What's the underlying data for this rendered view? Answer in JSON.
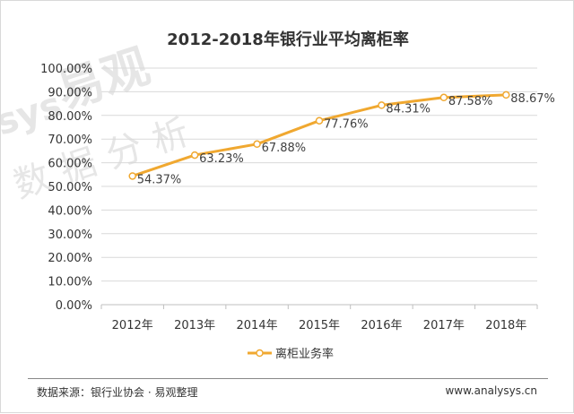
{
  "chart_data": {
    "type": "line",
    "title": "2012-2018年银行业平均离柜率",
    "categories": [
      "2012年",
      "2013年",
      "2014年",
      "2015年",
      "2016年",
      "2017年",
      "2018年"
    ],
    "series": [
      {
        "name": "离柜业务率",
        "values": [
          54.37,
          63.23,
          67.88,
          77.76,
          84.31,
          87.58,
          88.67
        ],
        "labels": [
          "54.37%",
          "63.23%",
          "67.88%",
          "77.76%",
          "84.31%",
          "87.58%",
          "88.67%"
        ],
        "color": "#f0a830"
      }
    ],
    "y_ticks": [
      "0.00%",
      "10.00%",
      "20.00%",
      "30.00%",
      "40.00%",
      "50.00%",
      "60.00%",
      "70.00%",
      "80.00%",
      "90.00%",
      "100.00%"
    ],
    "ylim": [
      0,
      100
    ],
    "grid": true,
    "legend_position": "bottom"
  },
  "watermark": {
    "brand": "易观",
    "prefix": "sys",
    "subtitle": "数据分析"
  },
  "footer": {
    "source": "数据来源：银行业协会 · 易观整理",
    "site": "www.analysys.cn"
  }
}
